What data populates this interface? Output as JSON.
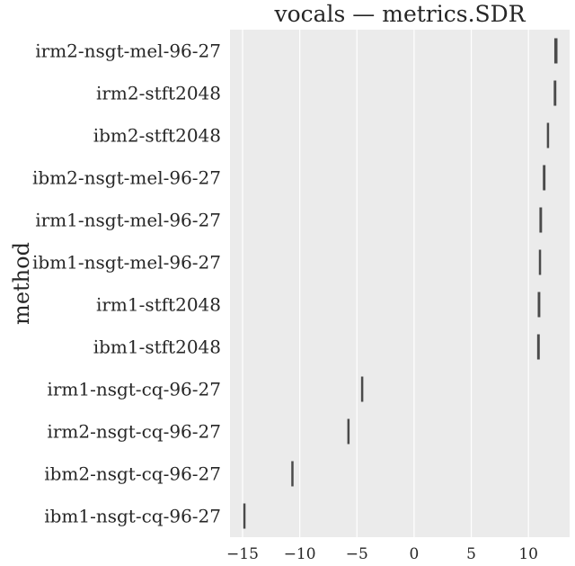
{
  "chart_data": {
    "type": "box",
    "title": "vocals — metrics.SDR",
    "xlabel": "",
    "ylabel": "method",
    "xlim": [
      -16.1,
      13.6
    ],
    "xticks": [
      -15,
      -10,
      -5,
      0,
      5,
      10
    ],
    "xtick_labels": [
      "−15",
      "−10",
      "−5",
      "0",
      "5",
      "10"
    ],
    "grid": true,
    "categories": [
      "irm2-nsgt-mel-96-27",
      "irm2-stft2048",
      "ibm2-stft2048",
      "ibm2-nsgt-mel-96-27",
      "irm1-nsgt-mel-96-27",
      "ibm1-nsgt-mel-96-27",
      "irm1-stft2048",
      "ibm1-stft2048",
      "irm1-nsgt-cq-96-27",
      "irm2-nsgt-cq-96-27",
      "ibm2-nsgt-cq-96-27",
      "ibm1-nsgt-cq-96-27"
    ],
    "boxes": [
      {
        "low": 12.3,
        "high": 12.5
      },
      {
        "low": 12.25,
        "high": 12.4
      },
      {
        "low": 11.65,
        "high": 11.75
      },
      {
        "low": 11.3,
        "high": 11.45
      },
      {
        "low": 11.0,
        "high": 11.15
      },
      {
        "low": 10.95,
        "high": 11.05
      },
      {
        "low": 10.85,
        "high": 11.0
      },
      {
        "low": 10.8,
        "high": 10.95
      },
      {
        "low": -4.6,
        "high": -4.5
      },
      {
        "low": -5.8,
        "high": -5.7
      },
      {
        "low": -10.7,
        "high": -10.6
      },
      {
        "low": -14.9,
        "high": -14.8
      }
    ],
    "colors": {
      "plot_bg": "#ebebeb",
      "grid": "#ffffff",
      "box": "#4a4a4a"
    }
  }
}
